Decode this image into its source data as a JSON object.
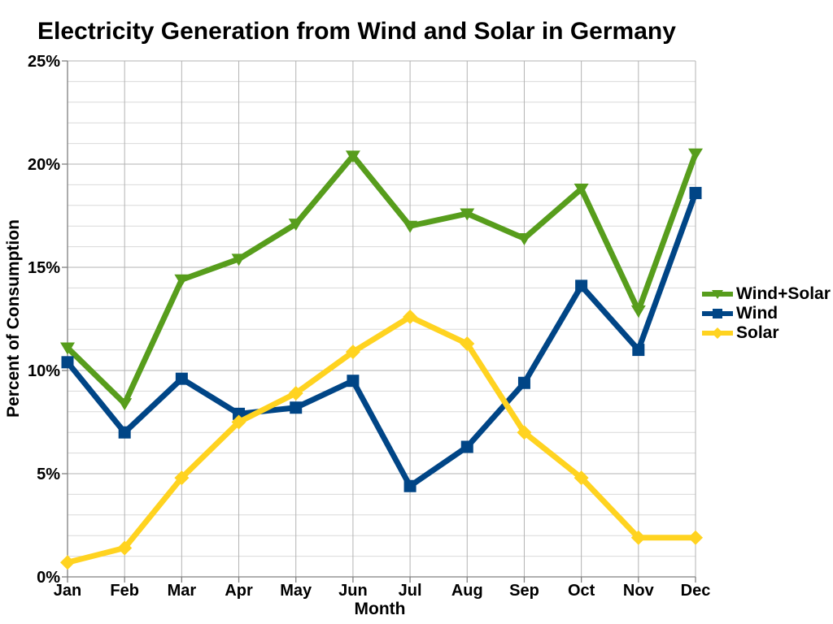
{
  "title": "Electricity Generation from Wind and Solar in Germany",
  "chart_data": {
    "type": "line",
    "title": "Electricity Generation from Wind and Solar in Germany",
    "xlabel": "Month",
    "ylabel": "Percent of Consumption",
    "categories": [
      "Jan",
      "Feb",
      "Mar",
      "Apr",
      "May",
      "Jun",
      "Jul",
      "Aug",
      "Sep",
      "Oct",
      "Nov",
      "Dec"
    ],
    "series": [
      {
        "name": "Wind+Solar",
        "color": "#579D1C",
        "marker": "triangle-down",
        "values": [
          11.1,
          8.4,
          14.4,
          15.4,
          17.1,
          20.4,
          17.0,
          17.6,
          16.4,
          18.8,
          12.9,
          20.5
        ]
      },
      {
        "name": "Wind",
        "color": "#004586",
        "marker": "square",
        "values": [
          10.4,
          7.0,
          9.6,
          7.9,
          8.2,
          9.5,
          4.4,
          6.3,
          9.4,
          14.1,
          11.0,
          18.6
        ]
      },
      {
        "name": "Solar",
        "color": "#FFD320",
        "marker": "diamond",
        "values": [
          0.7,
          1.4,
          4.8,
          7.5,
          8.9,
          10.9,
          12.6,
          11.3,
          7.0,
          4.8,
          1.9,
          1.9
        ]
      }
    ],
    "ylim": [
      0,
      25
    ],
    "y_major_step": 5,
    "y_minor_step": 1,
    "y_tick_labels": [
      "0%",
      "5%",
      "10%",
      "15%",
      "20%",
      "25%"
    ],
    "grid": true,
    "legend_position": "right"
  },
  "palette": {
    "grid_major": "#b3b3b3",
    "grid_minor": "#d9d9d9",
    "axis": "#808080",
    "text": "#000000",
    "background": "#ffffff"
  }
}
